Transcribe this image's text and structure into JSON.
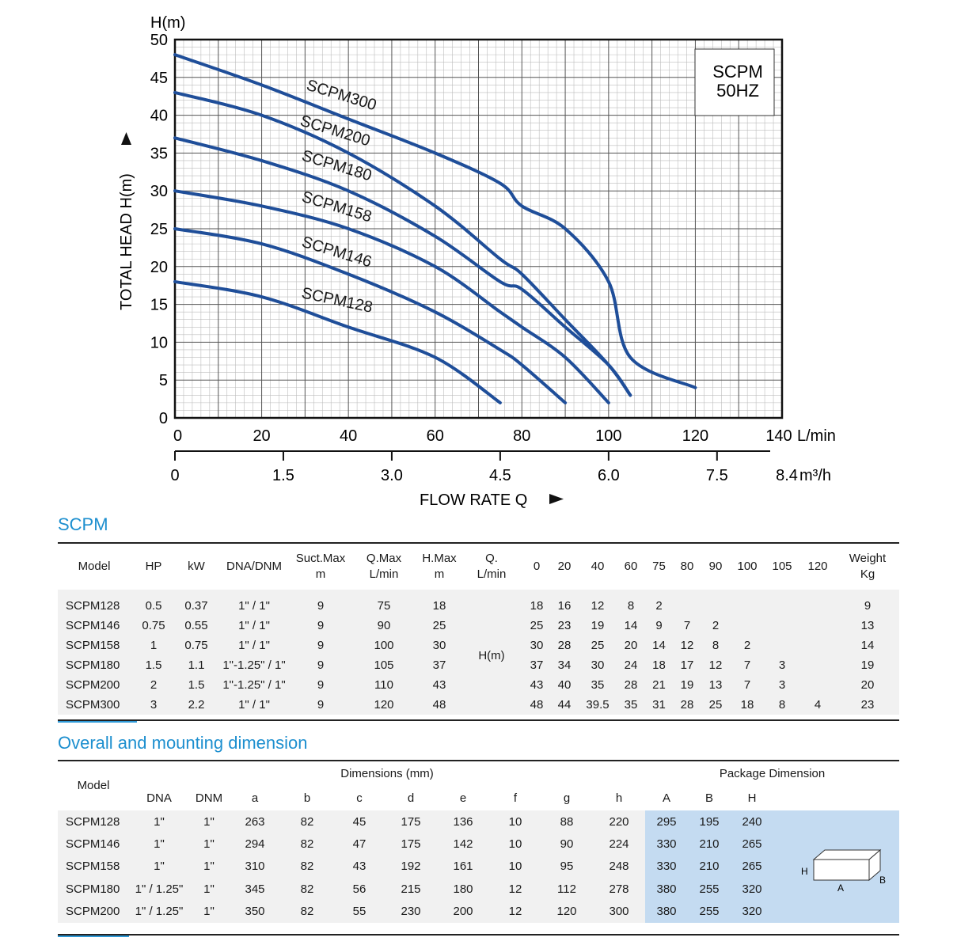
{
  "chart_data": {
    "type": "line",
    "ylabel_top": "H(m)",
    "ylabel_side": "TOTAL HEAD H(m)",
    "xlabel": "FLOW RATE Q",
    "x_unit": "L/min",
    "x2_unit": "m³/h",
    "xlim": [
      0,
      140
    ],
    "ylim": [
      0,
      50
    ],
    "x_ticks": [
      "0",
      "20",
      "40",
      "60",
      "80",
      "100",
      "120",
      "140"
    ],
    "x2_ticks": [
      "0",
      "1.5",
      "3.0",
      "4.5",
      "6.0",
      "7.5",
      "8.4"
    ],
    "y_ticks": [
      "0",
      "5",
      "10",
      "15",
      "20",
      "25",
      "30",
      "35",
      "40",
      "45",
      "50"
    ],
    "legend_title": "SCPM",
    "legend_sub": "50HZ",
    "grid": true,
    "series": [
      {
        "name": "SCPM300",
        "x": [
          0,
          20,
          40,
          60,
          75,
          80,
          90,
          100,
          105,
          120
        ],
        "y": [
          48,
          44,
          39.5,
          35,
          31,
          28,
          25,
          18,
          8,
          4
        ]
      },
      {
        "name": "SCPM200",
        "x": [
          0,
          20,
          40,
          60,
          75,
          80,
          90,
          100,
          105
        ],
        "y": [
          43,
          40,
          35,
          28,
          21,
          19,
          13,
          7,
          3
        ]
      },
      {
        "name": "SCPM180",
        "x": [
          0,
          20,
          40,
          60,
          75,
          80,
          90,
          100,
          105
        ],
        "y": [
          37,
          34,
          30,
          24,
          18,
          17,
          12,
          7,
          3
        ]
      },
      {
        "name": "SCPM158",
        "x": [
          0,
          20,
          40,
          60,
          75,
          80,
          90,
          100
        ],
        "y": [
          30,
          28,
          25,
          20,
          14,
          12,
          8,
          2
        ]
      },
      {
        "name": "SCPM146",
        "x": [
          0,
          20,
          40,
          60,
          75,
          80,
          90
        ],
        "y": [
          25,
          23,
          19,
          14,
          9,
          7,
          2
        ]
      },
      {
        "name": "SCPM128",
        "x": [
          0,
          20,
          40,
          60,
          75
        ],
        "y": [
          18,
          16,
          12,
          8,
          2
        ]
      }
    ]
  },
  "specs": {
    "title": "SCPM",
    "headers": {
      "model": "Model",
      "hp": "HP",
      "kw": "kW",
      "dna": "DNA/DNM",
      "suct1": "Suct.Max",
      "suct2": "m",
      "qmax1": "Q.Max",
      "qmax2": "L/min",
      "hmax1": "H.Max",
      "hmax2": "m",
      "q1": "Q.",
      "q2": "L/min",
      "flows": [
        "0",
        "20",
        "40",
        "60",
        "75",
        "80",
        "90",
        "100",
        "105",
        "120"
      ],
      "weight1": "Weight",
      "weight2": "Kg"
    },
    "h_label": "H(m)",
    "rows": [
      {
        "model": "SCPM128",
        "hp": "0.5",
        "kw": "0.37",
        "dna": "1\" / 1\"",
        "suct": "9",
        "qmax": "75",
        "hmax": "18",
        "h": [
          "18",
          "16",
          "12",
          "8",
          "2",
          "",
          "",
          "",
          "",
          ""
        ],
        "weight": "9"
      },
      {
        "model": "SCPM146",
        "hp": "0.75",
        "kw": "0.55",
        "dna": "1\" / 1\"",
        "suct": "9",
        "qmax": "90",
        "hmax": "25",
        "h": [
          "25",
          "23",
          "19",
          "14",
          "9",
          "7",
          "2",
          "",
          "",
          ""
        ],
        "weight": "13"
      },
      {
        "model": "SCPM158",
        "hp": "1",
        "kw": "0.75",
        "dna": "1\" / 1\"",
        "suct": "9",
        "qmax": "100",
        "hmax": "30",
        "h": [
          "30",
          "28",
          "25",
          "20",
          "14",
          "12",
          "8",
          "2",
          "",
          ""
        ],
        "weight": "14"
      },
      {
        "model": "SCPM180",
        "hp": "1.5",
        "kw": "1.1",
        "dna": "1\"-1.25\"  / 1\"",
        "suct": "9",
        "qmax": "105",
        "hmax": "37",
        "h": [
          "37",
          "34",
          "30",
          "24",
          "18",
          "17",
          "12",
          "7",
          "3",
          ""
        ],
        "weight": "19"
      },
      {
        "model": "SCPM200",
        "hp": "2",
        "kw": "1.5",
        "dna": "1\"-1.25\"  / 1\"",
        "suct": "9",
        "qmax": "110",
        "hmax": "43",
        "h": [
          "43",
          "40",
          "35",
          "28",
          "21",
          "19",
          "13",
          "7",
          "3",
          ""
        ],
        "weight": "20"
      },
      {
        "model": "SCPM300",
        "hp": "3",
        "kw": "2.2",
        "dna": "1\" / 1\"",
        "suct": "9",
        "qmax": "120",
        "hmax": "48",
        "h": [
          "48",
          "44",
          "39.5",
          "35",
          "31",
          "28",
          "25",
          "18",
          "8",
          "4"
        ],
        "weight": "23"
      }
    ]
  },
  "dims": {
    "title": "Overall and mounting dimension",
    "headers": {
      "model": "Model",
      "dimensions": "Dimensions (mm)",
      "package": "Package Dimension",
      "cols": [
        "DNA",
        "DNM",
        "a",
        "b",
        "c",
        "d",
        "e",
        "f",
        "g",
        "h"
      ],
      "pkg_cols": [
        "A",
        "B",
        "H"
      ]
    },
    "rows": [
      {
        "model": "SCPM128",
        "vals": [
          "1\"",
          "1\"",
          "263",
          "82",
          "45",
          "175",
          "136",
          "10",
          "88",
          "220"
        ],
        "pkg": [
          "295",
          "195",
          "240"
        ]
      },
      {
        "model": "SCPM146",
        "vals": [
          "1\"",
          "1\"",
          "294",
          "82",
          "47",
          "175",
          "142",
          "10",
          "90",
          "224"
        ],
        "pkg": [
          "330",
          "210",
          "265"
        ]
      },
      {
        "model": "SCPM158",
        "vals": [
          "1\"",
          "1\"",
          "310",
          "82",
          "43",
          "192",
          "161",
          "10",
          "95",
          "248"
        ],
        "pkg": [
          "330",
          "210",
          "265"
        ]
      },
      {
        "model": "SCPM180",
        "vals": [
          "1\" / 1.25\"",
          "1\"",
          "345",
          "82",
          "56",
          "215",
          "180",
          "12",
          "112",
          "278"
        ],
        "pkg": [
          "380",
          "255",
          "320"
        ]
      },
      {
        "model": "SCPM200",
        "vals": [
          "1\" / 1.25\"",
          "1\"",
          "350",
          "82",
          "55",
          "230",
          "200",
          "12",
          "120",
          "300"
        ],
        "pkg": [
          "380",
          "255",
          "320"
        ]
      }
    ],
    "box_labels": {
      "h": "H",
      "a": "A",
      "b": "B"
    }
  },
  "colors": {
    "curve": "#1f4e99",
    "accent": "#2f9ad8",
    "package_bg": "#c4dbf1"
  }
}
